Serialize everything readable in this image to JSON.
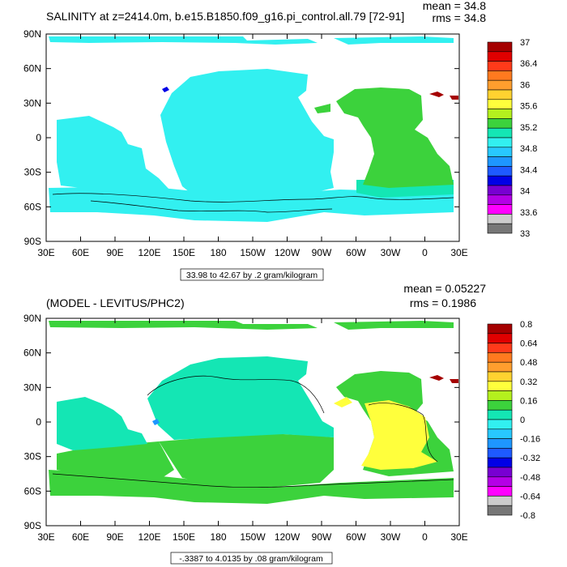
{
  "chart_data": [
    {
      "type": "heatmap",
      "title": "SALINITY at z=2414.0m, b.e15.B1850.f09_g16.pi_control.all.79 [72-91]",
      "stats": {
        "mean": "mean = 34.8",
        "rms": "rms = 34.8"
      },
      "x_ticks": [
        "30E",
        "60E",
        "90E",
        "120E",
        "150E",
        "180",
        "150W",
        "120W",
        "90W",
        "60W",
        "30W",
        "0",
        "30E"
      ],
      "y_ticks": [
        "90N",
        "60N",
        "30N",
        "0",
        "30S",
        "60S",
        "90S"
      ],
      "contour_info": "33.98 to 42.67 by .2 gram/kilogram",
      "colorbar": {
        "labels": [
          "37",
          "36.4",
          "36",
          "35.6",
          "35.2",
          "34.8",
          "34.4",
          "34",
          "33.6",
          "33"
        ],
        "colors": [
          "#a50000",
          "#e00000",
          "#ff3a1a",
          "#ff7a1f",
          "#ff9e2e",
          "#ffd230",
          "#ffff3c",
          "#b4f01e",
          "#3cd23c",
          "#14e6b4",
          "#32f0f0",
          "#28c8ff",
          "#1e96ff",
          "#1e5aff",
          "#0000e6",
          "#7800d2",
          "#b400e6",
          "#ff00ff",
          "#cccccc",
          "#777777"
        ]
      },
      "regions": {
        "ocean_main": "#32f0f0",
        "atlantic": "#3cd23c",
        "southern": "#14e6b4",
        "med": "#a50000",
        "dense_spot": "#0000e6"
      }
    },
    {
      "type": "heatmap",
      "title": "(MODEL - LEVITUS/PHC2)",
      "stats": {
        "mean": "mean = 0.05227",
        "rms": "rms = 0.1986"
      },
      "x_ticks": [
        "30E",
        "60E",
        "90E",
        "120E",
        "150E",
        "180",
        "150W",
        "120W",
        "90W",
        "60W",
        "30W",
        "0",
        "30E"
      ],
      "y_ticks": [
        "90N",
        "60N",
        "30N",
        "0",
        "30S",
        "60S",
        "90S"
      ],
      "contour_info": "-.3387 to 4.0135 by .08 gram/kilogram",
      "colorbar": {
        "labels": [
          "0.8",
          "0.64",
          "0.48",
          "0.32",
          "0.16",
          "0",
          "-0.16",
          "-0.32",
          "-0.48",
          "-0.64",
          "-0.8"
        ],
        "colors": [
          "#a50000",
          "#e00000",
          "#ff3a1a",
          "#ff7a1f",
          "#ff9e2e",
          "#ffd230",
          "#ffff3c",
          "#b4f01e",
          "#3cd23c",
          "#14e6b4",
          "#32f0f0",
          "#28c8ff",
          "#1e96ff",
          "#1e5aff",
          "#0000e6",
          "#7800d2",
          "#b400e6",
          "#ff00ff",
          "#cccccc",
          "#777777"
        ]
      },
      "regions": {
        "ocean_main": "#3cd23c",
        "pacific_north": "#14e6b4",
        "atlantic_sub": "#ffff3c",
        "med": "#a50000",
        "dense_spot": "#1e96ff"
      }
    }
  ]
}
